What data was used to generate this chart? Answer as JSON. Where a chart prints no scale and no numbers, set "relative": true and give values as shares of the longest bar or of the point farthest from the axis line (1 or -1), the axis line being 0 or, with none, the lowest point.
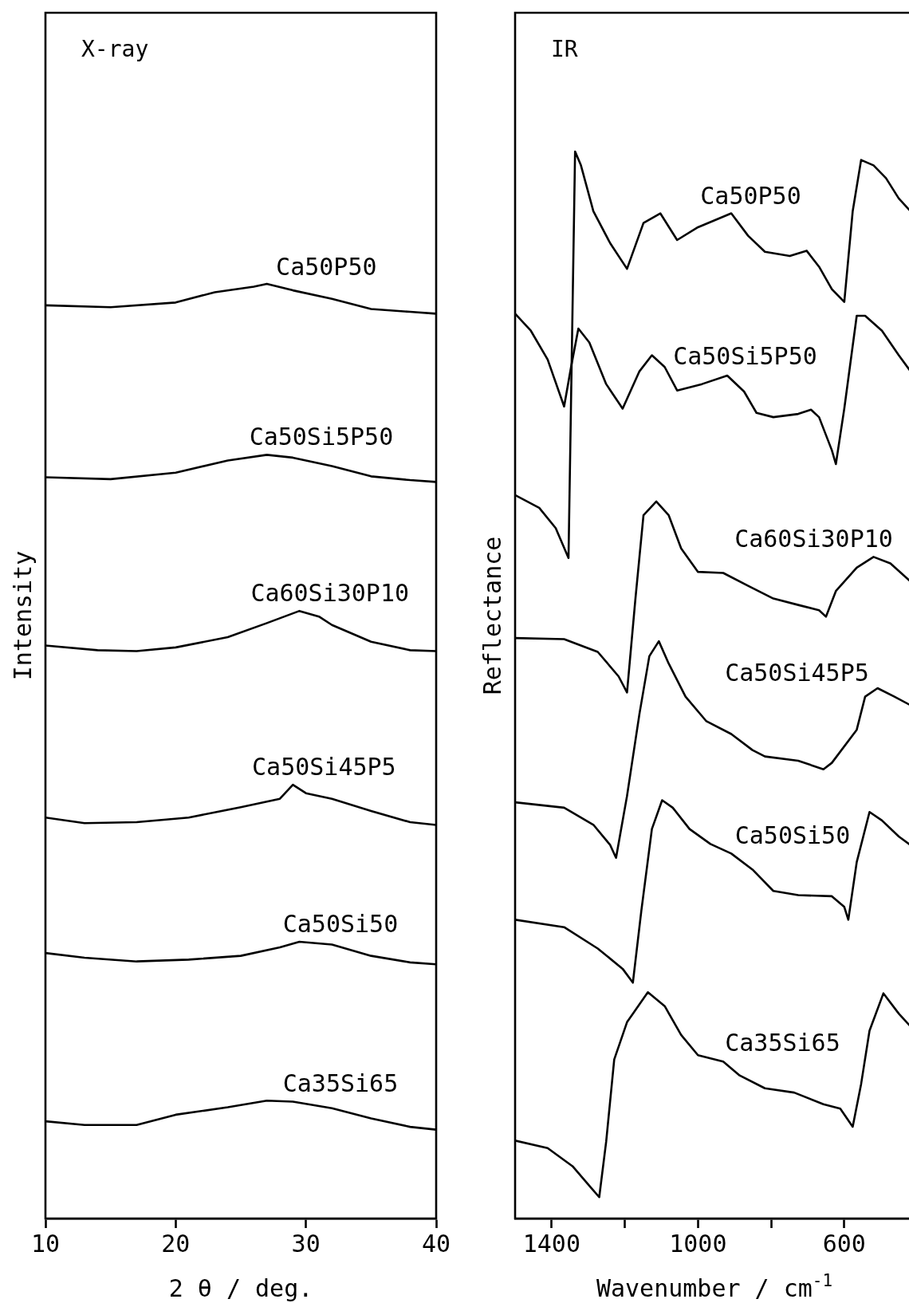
{
  "chart_data": [
    {
      "type": "line",
      "relative": true,
      "annotations": [
        "X-ray"
      ],
      "xlabel": "2 θ / deg.",
      "ylabel": "Intensity",
      "xlim": [
        10,
        40
      ],
      "xticks": [
        10,
        20,
        30,
        40
      ],
      "grid": false,
      "legend": false,
      "marker": "none",
      "line_style": "solid",
      "series": [
        {
          "name": "Ca50P50",
          "color": "#000000",
          "x": [
            10,
            15,
            20,
            23,
            26,
            27,
            29,
            32,
            35,
            38,
            40
          ],
          "values": [
            0.977,
            0.975,
            0.98,
            0.991,
            0.997,
            1.0,
            0.993,
            0.984,
            0.973,
            0.97,
            0.968
          ]
        },
        {
          "name": "Ca50Si5P50",
          "color": "#000000",
          "x": [
            10,
            15,
            20,
            24,
            27,
            29,
            32,
            35,
            38,
            40
          ],
          "values": [
            0.793,
            0.791,
            0.798,
            0.811,
            0.817,
            0.814,
            0.805,
            0.794,
            0.79,
            0.788
          ]
        },
        {
          "name": "Ca60Si30P10",
          "color": "#000000",
          "x": [
            10,
            14,
            17,
            20,
            24,
            27,
            29.5,
            31,
            32,
            35,
            38,
            40
          ],
          "values": [
            0.613,
            0.608,
            0.607,
            0.611,
            0.622,
            0.637,
            0.65,
            0.644,
            0.635,
            0.617,
            0.608,
            0.607
          ]
        },
        {
          "name": "Ca50Si45P5",
          "color": "#000000",
          "x": [
            10,
            13,
            17,
            21,
            25,
            28,
            29,
            30,
            32,
            35,
            38,
            40
          ],
          "values": [
            0.429,
            0.423,
            0.424,
            0.429,
            0.44,
            0.449,
            0.464,
            0.455,
            0.449,
            0.436,
            0.424,
            0.421
          ]
        },
        {
          "name": "Ca50Si50",
          "color": "#000000",
          "x": [
            10,
            13,
            17,
            21,
            25,
            28,
            29.5,
            32,
            35,
            38,
            40
          ],
          "values": [
            0.284,
            0.279,
            0.275,
            0.277,
            0.281,
            0.29,
            0.296,
            0.293,
            0.281,
            0.274,
            0.272
          ]
        },
        {
          "name": "Ca35Si65",
          "color": "#000000",
          "x": [
            10,
            13,
            17,
            20,
            24,
            27,
            29,
            32,
            35,
            38,
            40
          ],
          "values": [
            0.104,
            0.1,
            0.1,
            0.111,
            0.119,
            0.126,
            0.125,
            0.118,
            0.107,
            0.098,
            0.095
          ]
        }
      ]
    },
    {
      "type": "line",
      "relative": true,
      "annotations": [
        "IR"
      ],
      "xlabel": "Wavenumber / cm$^{-1}$",
      "ylabel": "Reflectance",
      "xlim": [
        1500,
        410
      ],
      "xticks": [
        1400,
        {
          "value": 1200,
          "label": null
        },
        1000,
        {
          "value": 800,
          "label": null
        },
        600
      ],
      "grid": false,
      "legend": false,
      "marker": "none",
      "line_style": "solid",
      "series": [
        {
          "name": "Ca50P50",
          "color": "#000000",
          "x": [
            1500,
            1434,
            1389,
            1354,
            1336,
            1320,
            1286,
            1240,
            1194,
            1149,
            1103,
            1057,
            1000,
            909,
            863,
            817,
            749,
            703,
            669,
            634,
            600,
            577,
            554,
            520,
            486,
            451,
            419
          ],
          "values": [
            0.678,
            0.666,
            0.647,
            0.619,
            1.0,
            0.987,
            0.944,
            0.914,
            0.89,
            0.933,
            0.942,
            0.917,
            0.929,
            0.942,
            0.921,
            0.906,
            0.902,
            0.907,
            0.892,
            0.871,
            0.859,
            0.944,
            0.992,
            0.987,
            0.975,
            0.956,
            0.944
          ]
        },
        {
          "name": "Ca50Si5P50",
          "color": "#000000",
          "x": [
            1500,
            1457,
            1411,
            1366,
            1347,
            1327,
            1297,
            1251,
            1206,
            1160,
            1126,
            1091,
            1057,
            989,
            920,
            874,
            840,
            794,
            726,
            691,
            669,
            634,
            623,
            600,
            566,
            543,
            497,
            451,
            419
          ],
          "values": [
            0.848,
            0.832,
            0.805,
            0.761,
            0.798,
            0.834,
            0.821,
            0.782,
            0.759,
            0.794,
            0.809,
            0.798,
            0.776,
            0.782,
            0.79,
            0.775,
            0.755,
            0.751,
            0.754,
            0.758,
            0.751,
            0.72,
            0.707,
            0.759,
            0.846,
            0.846,
            0.832,
            0.809,
            0.794
          ]
        },
        {
          "name": "Ca60Si30P10",
          "color": "#000000",
          "x": [
            1500,
            1366,
            1274,
            1217,
            1194,
            1171,
            1149,
            1114,
            1080,
            1046,
            1000,
            931,
            863,
            794,
            726,
            669,
            650,
            623,
            566,
            520,
            474,
            419
          ],
          "values": [
            0.544,
            0.543,
            0.531,
            0.508,
            0.493,
            0.581,
            0.659,
            0.672,
            0.659,
            0.628,
            0.606,
            0.605,
            0.593,
            0.581,
            0.575,
            0.57,
            0.564,
            0.588,
            0.61,
            0.62,
            0.614,
            0.597
          ]
        },
        {
          "name": "Ca50Si45P5",
          "color": "#000000",
          "x": [
            1500,
            1366,
            1286,
            1240,
            1224,
            1194,
            1160,
            1133,
            1107,
            1080,
            1034,
            977,
            909,
            851,
            817,
            726,
            657,
            634,
            566,
            543,
            509,
            463,
            419
          ],
          "values": [
            0.39,
            0.385,
            0.369,
            0.35,
            0.338,
            0.396,
            0.473,
            0.527,
            0.541,
            0.52,
            0.489,
            0.466,
            0.454,
            0.439,
            0.433,
            0.429,
            0.421,
            0.427,
            0.458,
            0.489,
            0.497,
            0.489,
            0.481
          ]
        },
        {
          "name": "Ca50Si50",
          "color": "#000000",
          "x": [
            1500,
            1366,
            1274,
            1206,
            1178,
            1155,
            1126,
            1098,
            1069,
            1023,
            966,
            909,
            851,
            794,
            726,
            634,
            600,
            589,
            566,
            531,
            497,
            451,
            419
          ],
          "values": [
            0.28,
            0.273,
            0.253,
            0.234,
            0.221,
            0.288,
            0.365,
            0.392,
            0.385,
            0.365,
            0.351,
            0.342,
            0.327,
            0.307,
            0.303,
            0.302,
            0.292,
            0.28,
            0.334,
            0.381,
            0.373,
            0.358,
            0.35
          ]
        },
        {
          "name": "Ca35Si65",
          "color": "#000000",
          "x": [
            1500,
            1411,
            1343,
            1293,
            1270,
            1251,
            1229,
            1194,
            1137,
            1091,
            1046,
            1000,
            931,
            886,
            817,
            737,
            657,
            611,
            577,
            554,
            531,
            493,
            451,
            419
          ],
          "values": [
            0.073,
            0.066,
            0.049,
            0.029,
            0.02,
            0.072,
            0.149,
            0.184,
            0.212,
            0.199,
            0.172,
            0.153,
            0.147,
            0.134,
            0.122,
            0.118,
            0.107,
            0.103,
            0.086,
            0.126,
            0.176,
            0.211,
            0.192,
            0.18
          ]
        }
      ]
    }
  ]
}
